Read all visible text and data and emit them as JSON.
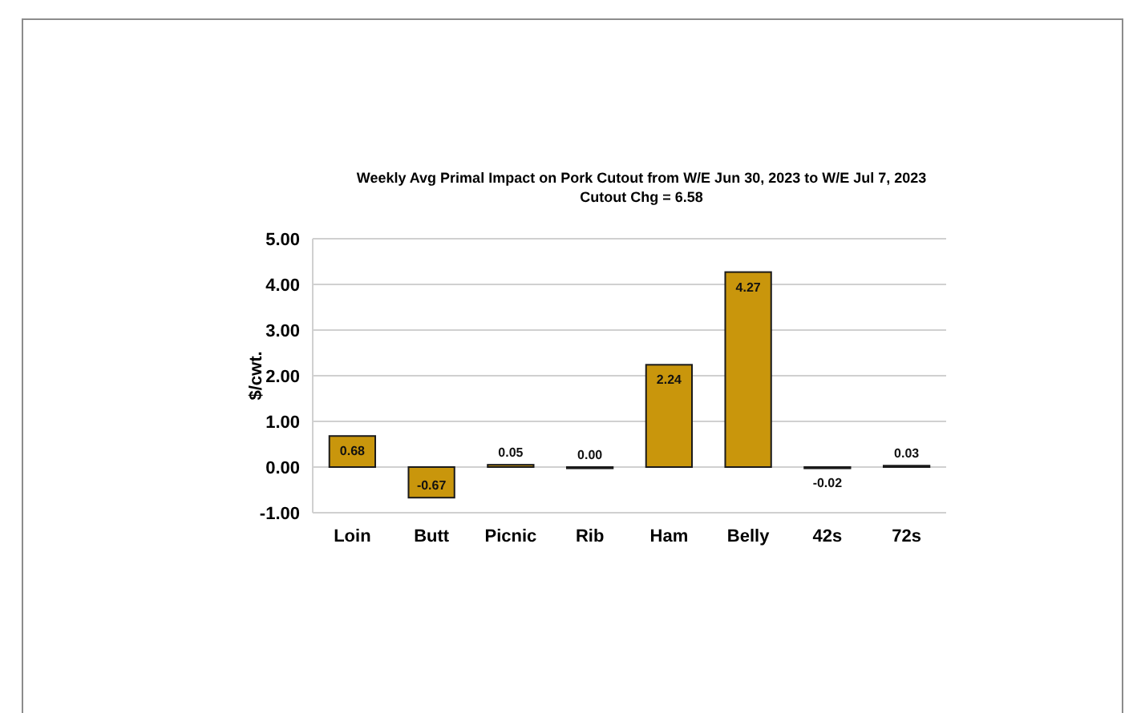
{
  "chart_data": {
    "type": "bar",
    "title": "Weekly Avg Primal Impact on Pork Cutout from W/E Jun 30, 2023 to W/E Jul 7, 2023",
    "subtitle": "Cutout Chg = 6.58",
    "ylabel": "$/cwt.",
    "categories": [
      "Loin",
      "Butt",
      "Picnic",
      "Rib",
      "Ham",
      "Belly",
      "42s",
      "72s"
    ],
    "values": [
      0.68,
      -0.67,
      0.05,
      0.0,
      2.24,
      4.27,
      -0.02,
      0.03
    ],
    "color": "#c9960c",
    "ylim": [
      -1,
      5
    ],
    "yticks": [
      {
        "value": -1,
        "label": "-1.00"
      },
      {
        "value": 0,
        "label": "0.00"
      },
      {
        "value": 1,
        "label": "1.00"
      },
      {
        "value": 2,
        "label": "2.00"
      },
      {
        "value": 3,
        "label": "3.00"
      },
      {
        "value": 4,
        "label": "4.00"
      },
      {
        "value": 5,
        "label": "5.00"
      }
    ],
    "value_labels": [
      "0.68",
      "-0.67",
      "0.05",
      "0.00",
      "2.24",
      "4.27",
      "-0.02",
      "0.03"
    ],
    "grid": "y"
  }
}
